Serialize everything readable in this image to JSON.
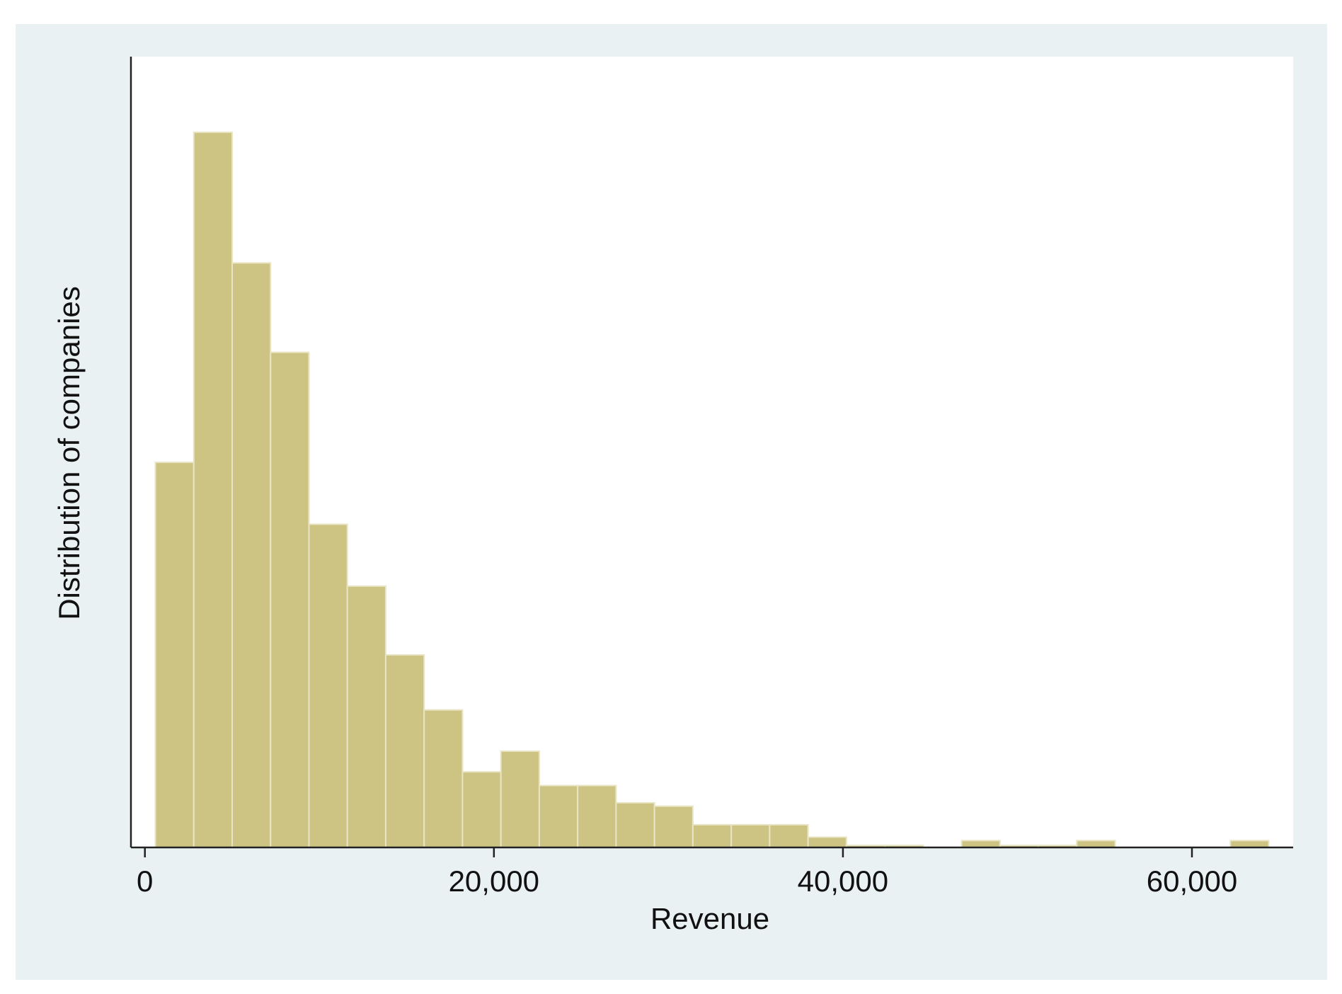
{
  "chart_data": {
    "type": "bar",
    "subtype": "histogram",
    "title": "",
    "xlabel": "Revenue",
    "ylabel": "Distribution of companies",
    "xlim": [
      -800,
      65800
    ],
    "ylim": [
      0,
      115
    ],
    "x_ticks": [
      0,
      20000,
      40000,
      60000
    ],
    "x_tick_labels": [
      "0",
      "20,000",
      "40,000",
      "60,000"
    ],
    "y_tick_labels_shown": false,
    "grid": false,
    "legend": "none",
    "bin_width": 2200,
    "bins": [
      {
        "start": 600,
        "end": 2800,
        "value": 56
      },
      {
        "start": 2800,
        "end": 5000,
        "value": 104
      },
      {
        "start": 5000,
        "end": 7200,
        "value": 85
      },
      {
        "start": 7200,
        "end": 9400,
        "value": 72
      },
      {
        "start": 9400,
        "end": 11600,
        "value": 47
      },
      {
        "start": 11600,
        "end": 13800,
        "value": 38
      },
      {
        "start": 13800,
        "end": 16000,
        "value": 28
      },
      {
        "start": 16000,
        "end": 18200,
        "value": 20
      },
      {
        "start": 18200,
        "end": 20400,
        "value": 11
      },
      {
        "start": 20400,
        "end": 22600,
        "value": 14
      },
      {
        "start": 22600,
        "end": 24800,
        "value": 9
      },
      {
        "start": 24800,
        "end": 27000,
        "value": 9
      },
      {
        "start": 27000,
        "end": 29200,
        "value": 6.5
      },
      {
        "start": 29200,
        "end": 31400,
        "value": 6
      },
      {
        "start": 31400,
        "end": 33600,
        "value": 3.3
      },
      {
        "start": 33600,
        "end": 35800,
        "value": 3.3
      },
      {
        "start": 35800,
        "end": 38000,
        "value": 3.3
      },
      {
        "start": 38000,
        "end": 40200,
        "value": 1.5
      },
      {
        "start": 40200,
        "end": 42400,
        "value": 0.3
      },
      {
        "start": 42400,
        "end": 44600,
        "value": 0.3
      },
      {
        "start": 44600,
        "end": 46800,
        "value": 0
      },
      {
        "start": 46800,
        "end": 49000,
        "value": 1
      },
      {
        "start": 49000,
        "end": 51200,
        "value": 0.3
      },
      {
        "start": 51200,
        "end": 53400,
        "value": 0.3
      },
      {
        "start": 53400,
        "end": 55600,
        "value": 1
      },
      {
        "start": 55600,
        "end": 57800,
        "value": 0
      },
      {
        "start": 57800,
        "end": 60000,
        "value": 0
      },
      {
        "start": 60000,
        "end": 62200,
        "value": 0
      },
      {
        "start": 62200,
        "end": 64400,
        "value": 1
      }
    ],
    "colors": {
      "bar_fill": "#cdc484",
      "bar_edge": "#e9e5c4",
      "plot_background": "#ffffff",
      "outer_background": "#eaf1f3",
      "axis_line": "#222222",
      "text": "#111111"
    }
  }
}
